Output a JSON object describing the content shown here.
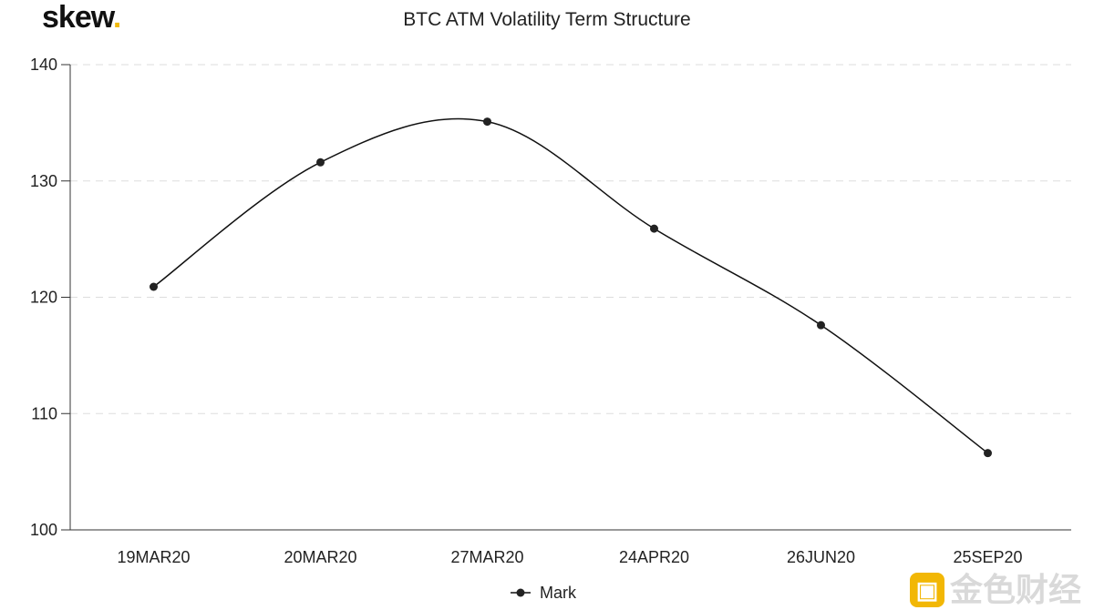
{
  "brand": {
    "logo_text": "skew",
    "logo_dot": "."
  },
  "watermark": {
    "text": "金色财经",
    "icon": "jinse-logo-icon"
  },
  "colors": {
    "line": "#111111",
    "grid": "#dddddd",
    "axis": "#333333",
    "accent": "#f0b90b"
  },
  "chart_data": {
    "type": "line",
    "title": "BTC ATM Volatility Term Structure",
    "xlabel": "",
    "ylabel": "",
    "categories": [
      "19MAR20",
      "20MAR20",
      "27MAR20",
      "24APR20",
      "26JUN20",
      "25SEP20"
    ],
    "series": [
      {
        "name": "Mark",
        "values": [
          120.9,
          131.6,
          135.1,
          125.9,
          117.6,
          106.6
        ]
      }
    ],
    "ylim": [
      100,
      140
    ],
    "yticks": [
      100,
      110,
      120,
      130,
      140
    ],
    "grid": "horizontal-dashed",
    "legend": "bottom-center"
  }
}
